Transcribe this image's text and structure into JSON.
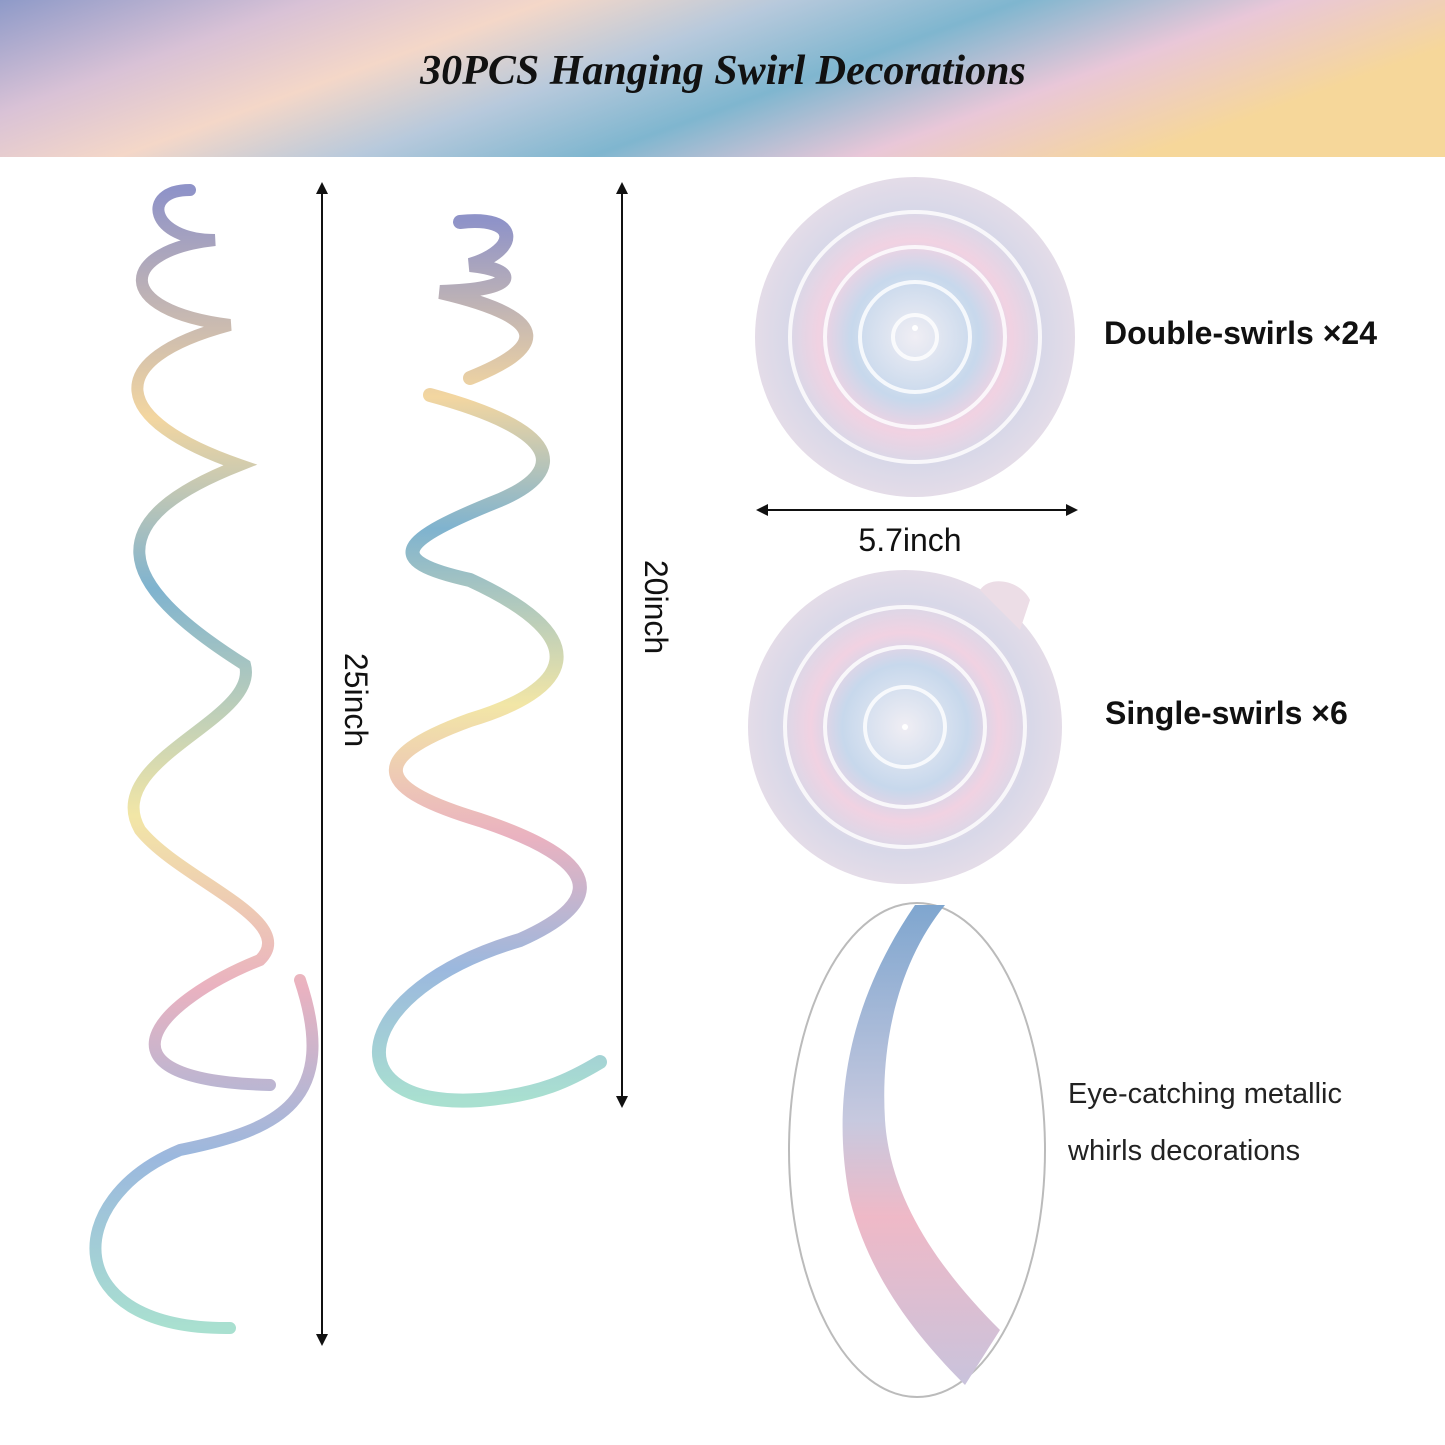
{
  "header": {
    "title": "30PCS Hanging Swirl Decorations"
  },
  "long_swirl": {
    "length": "25inch"
  },
  "short_swirl": {
    "length": "20inch"
  },
  "double_swirl": {
    "label": "Double-swirls ×24",
    "width": "5.7inch"
  },
  "single_swirl": {
    "label": "Single-swirls ×6"
  },
  "detail": {
    "lines": [
      "Eye-catching metallic",
      "whirls decorations"
    ]
  }
}
